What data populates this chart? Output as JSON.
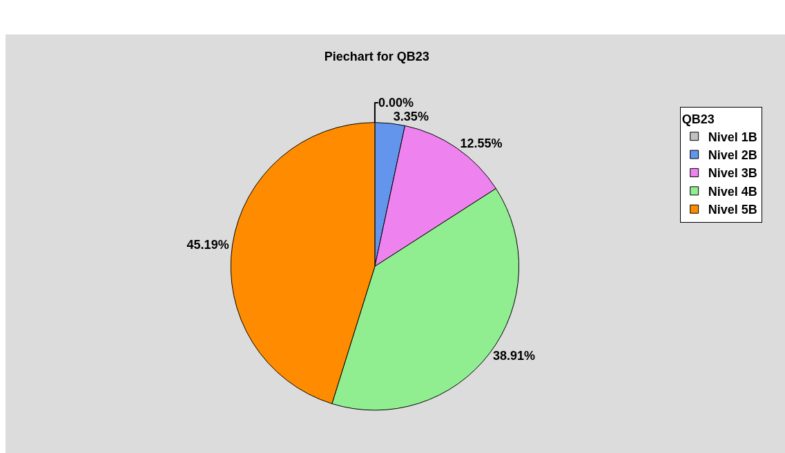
{
  "chart_data": {
    "type": "pie",
    "title": "Piechart for QB23",
    "legend_title": "QB23",
    "categories": [
      "Nivel 1B",
      "Nivel 2B",
      "Nivel 3B",
      "Nivel 4B",
      "Nivel 5B"
    ],
    "values": [
      0.0,
      3.35,
      12.55,
      38.91,
      45.19
    ],
    "colors": [
      "#c0c0c0",
      "#6495ed",
      "#ee82ee",
      "#90ee90",
      "#ff8c00"
    ],
    "value_labels": [
      "0.00%",
      "3.35%",
      "12.55%",
      "38.91%",
      "45.19%"
    ],
    "legend": "top right"
  }
}
